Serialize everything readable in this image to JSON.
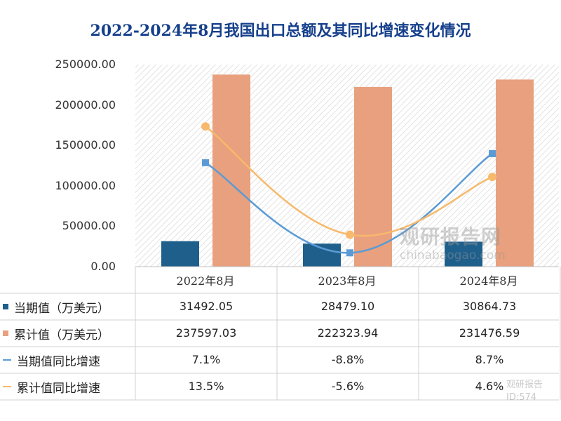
{
  "chart_data": {
    "type": "bar",
    "title": "2022-2024年8月我国出口总额及其同比增速变化情况",
    "categories": [
      "2022年8月",
      "2023年8月",
      "2024年8月"
    ],
    "ylim": [
      0,
      250000
    ],
    "yticks": [
      "250000.00",
      "200000.00",
      "150000.00",
      "100000.00",
      "50000.00",
      "0.00"
    ],
    "series": [
      {
        "name": "当期值（万美元）",
        "kind": "bar",
        "color": "#1f5f8c",
        "values": [
          31492.05,
          28479.1,
          30864.73
        ],
        "labels": [
          "31492.05",
          "28479.10",
          "30864.73"
        ]
      },
      {
        "name": "累计值（万美元）",
        "kind": "bar",
        "color": "#e8a07e",
        "values": [
          237597.03,
          222323.94,
          231476.59
        ],
        "labels": [
          "237597.03",
          "222323.94",
          "231476.59"
        ]
      },
      {
        "name": "当期值同比增速",
        "kind": "line",
        "color": "#5b9bd5",
        "values": [
          7.1,
          -8.8,
          8.7
        ],
        "labels": [
          "7.1%",
          "-8.8%",
          "8.7%"
        ]
      },
      {
        "name": "累计值同比增速",
        "kind": "line",
        "color": "#f7b96b",
        "values": [
          13.5,
          -5.6,
          4.6
        ],
        "labels": [
          "13.5%",
          "-5.6%",
          "4.6%"
        ]
      }
    ],
    "grid": false,
    "legend": "table-left"
  },
  "watermark": {
    "text_cn": "观研报告网",
    "text_en": "chinabaogao.com",
    "text2": "观研报告",
    "text3": "ID:574"
  }
}
